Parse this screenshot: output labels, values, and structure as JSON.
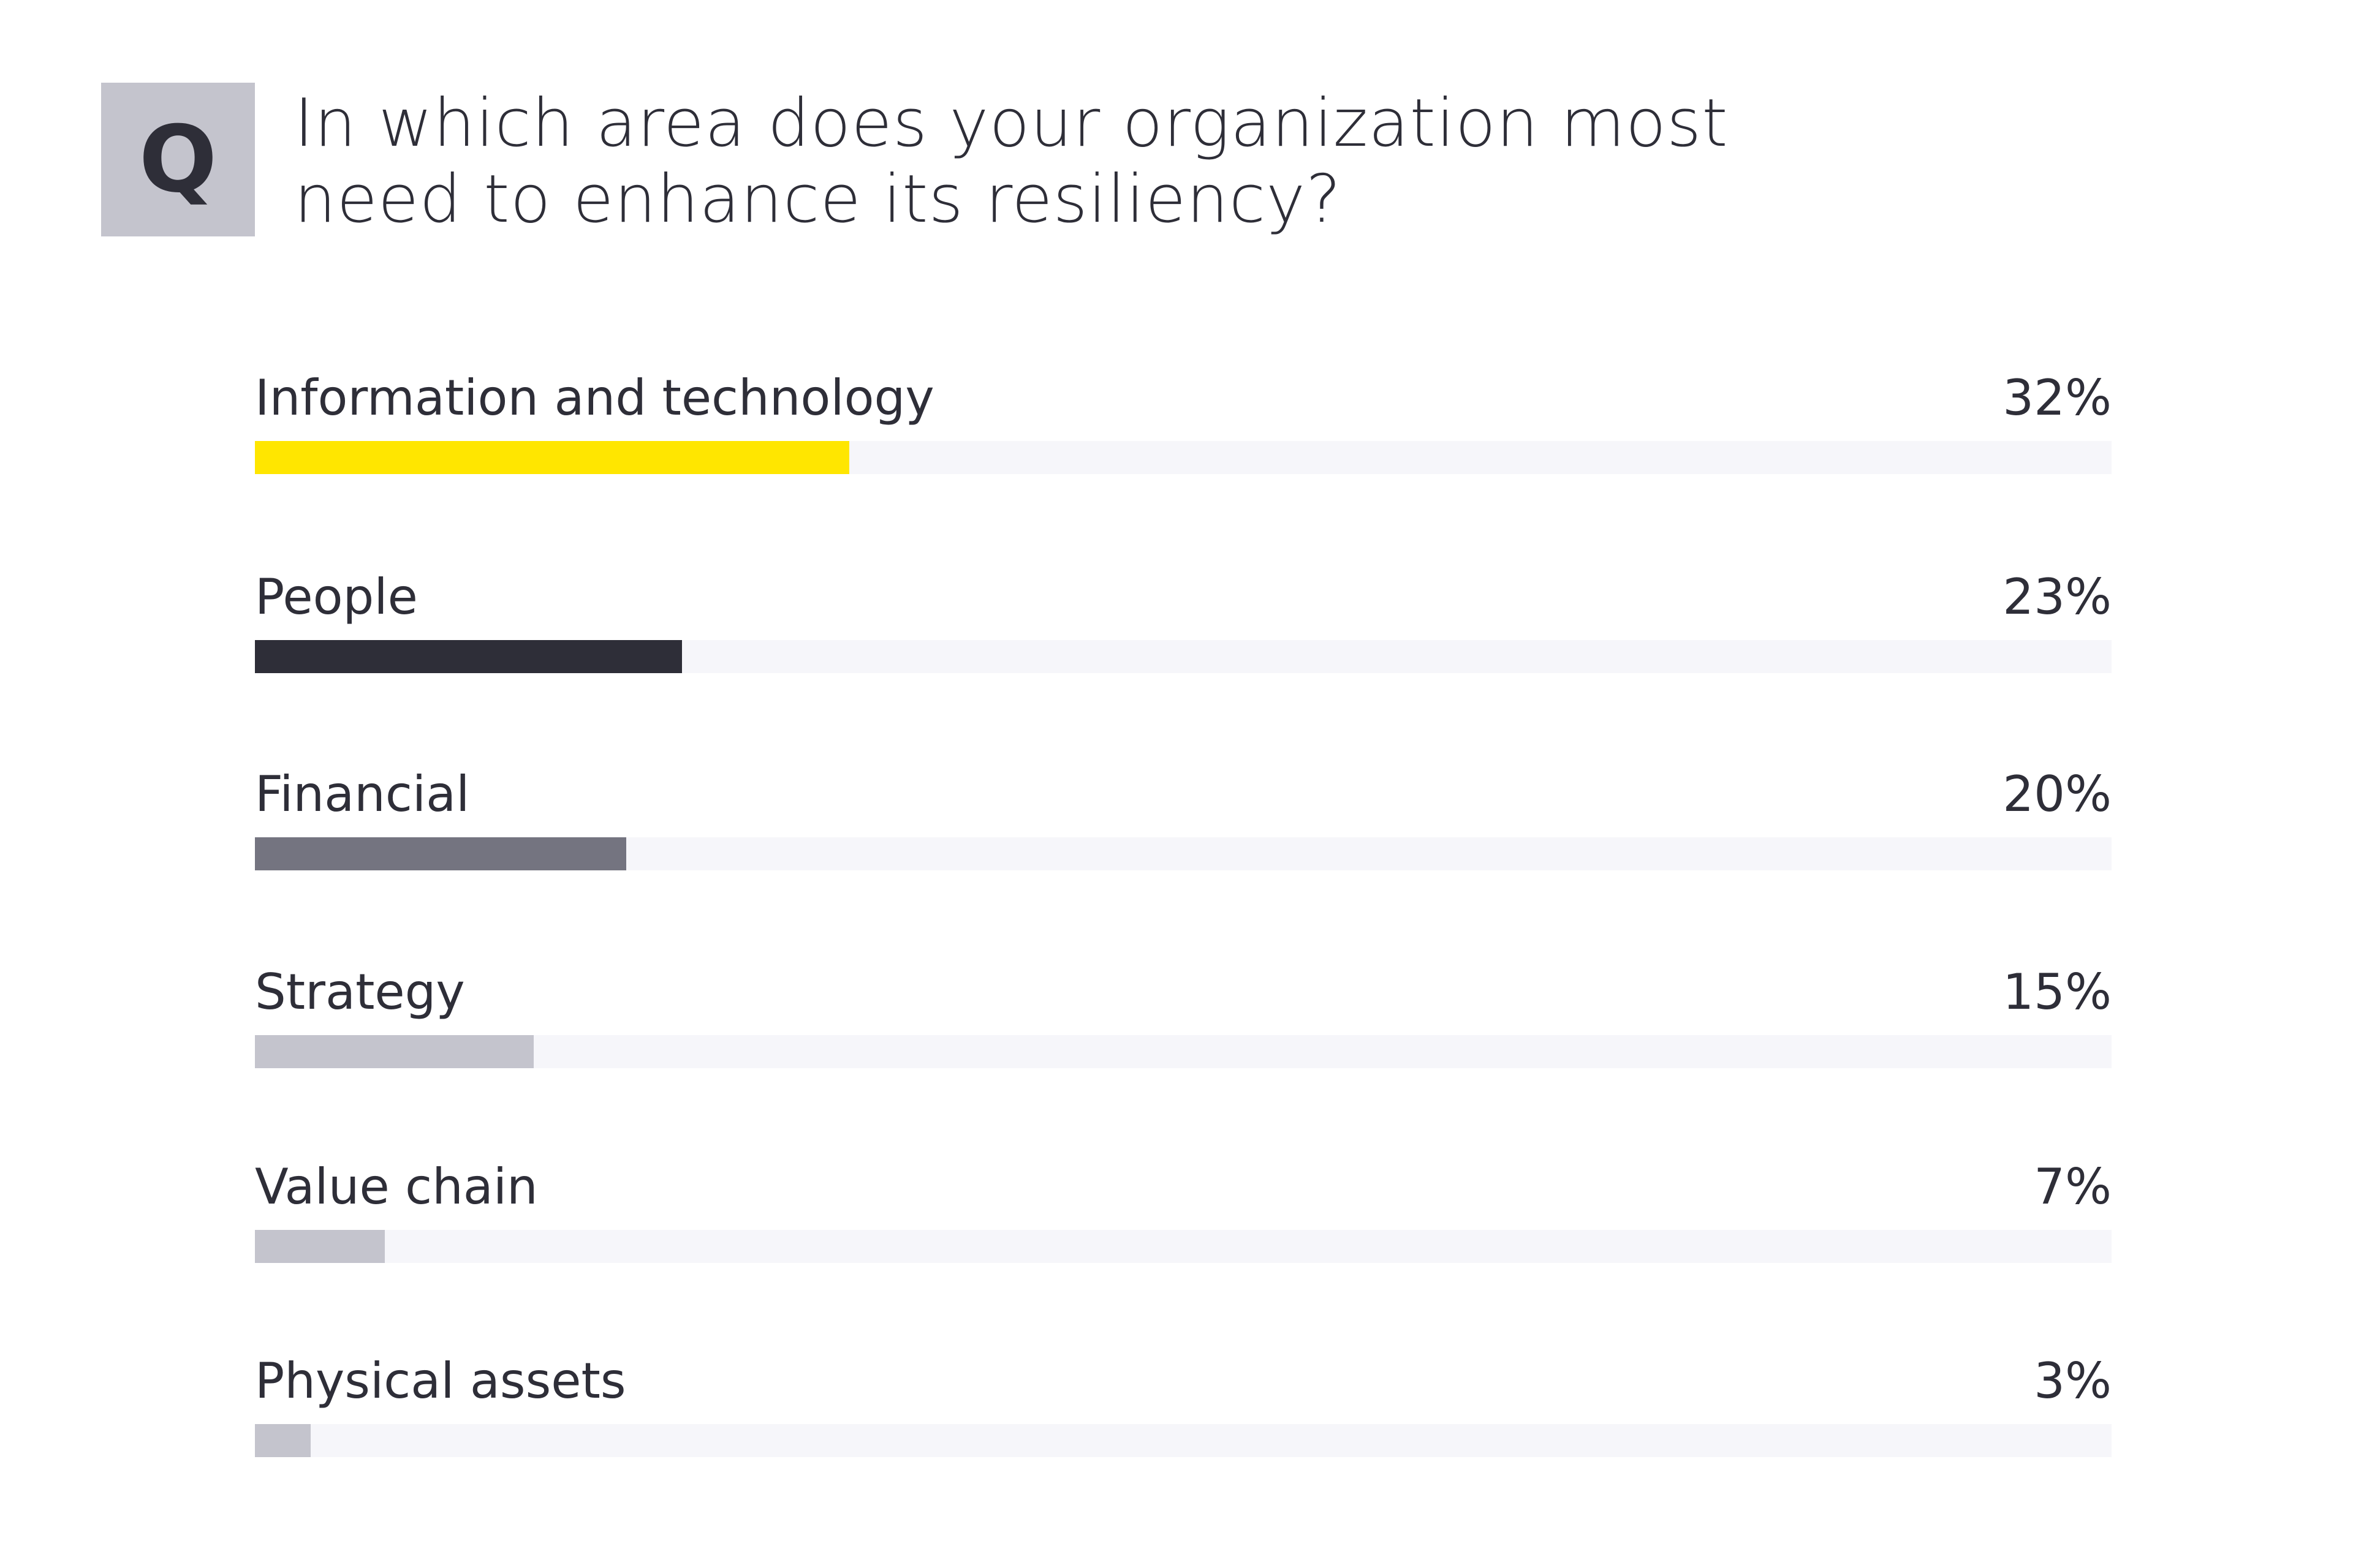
{
  "header": {
    "q_badge": "Q",
    "title": "In which area does your organization most need to enhance its resiliency?"
  },
  "chart_data": {
    "type": "bar",
    "orientation": "horizontal",
    "title": "In which area does your organization most need to enhance its resiliency?",
    "categories": [
      "Information and technology",
      "People",
      "Financial",
      "Strategy",
      "Value chain",
      "Physical assets"
    ],
    "values": [
      32,
      23,
      20,
      15,
      7,
      3
    ],
    "value_labels": [
      "32%",
      "23%",
      "20%",
      "15%",
      "7%",
      "3%"
    ],
    "colors": [
      "#FFE600",
      "#2E2E38",
      "#747480",
      "#C4C4CD",
      "#C4C4CD",
      "#C4C4CD"
    ],
    "track_color": "#F6F6FA",
    "xlim": [
      0,
      100
    ],
    "grid": false
  }
}
